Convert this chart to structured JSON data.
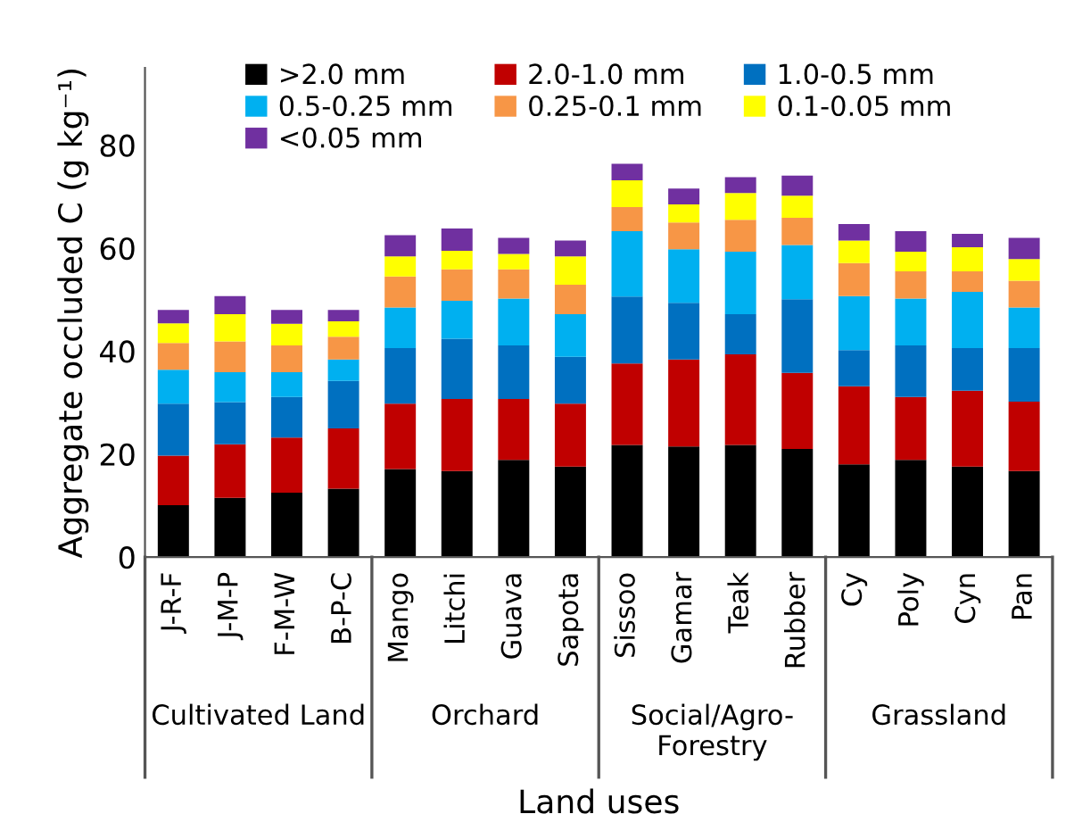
{
  "chart_data": {
    "type": "bar",
    "stacked": true,
    "ylabel": "Aggregate occluded C (g kg⁻¹)",
    "xlabel": "Land uses",
    "categories": [
      "J-R-F",
      "J-M-P",
      "F-M-W",
      "B-P-C",
      "Mango",
      "Litchi",
      "Guava",
      "Sapota",
      "Sissoo",
      "Gamar",
      "Teak",
      "Rubber",
      "Cy",
      "Poly",
      "Cyn",
      "Pan"
    ],
    "annotations": [
      "Cultivated Land",
      "Orchard",
      "Social/Agro-\nForestry",
      "Grassland"
    ],
    "series": [
      {
        "name": ">2.0 mm",
        "color": "#000000",
        "values": [
          10.1,
          11.5,
          12.5,
          13.3,
          17.1,
          16.7,
          18.9,
          17.6,
          21.8,
          21.5,
          21.8,
          21.0,
          18.0,
          18.9,
          17.6,
          16.7
        ]
      },
      {
        "name": "2.0-1.0 mm",
        "color": "#c00000",
        "values": [
          9.6,
          10.4,
          10.7,
          11.7,
          12.7,
          14.0,
          11.8,
          12.2,
          15.8,
          16.9,
          17.6,
          14.8,
          15.2,
          12.2,
          14.7,
          13.5
        ]
      },
      {
        "name": "1.0-0.5 mm",
        "color": "#0070c0",
        "values": [
          10.1,
          8.2,
          7.9,
          9.2,
          10.8,
          11.7,
          10.4,
          9.1,
          13.0,
          11.0,
          7.8,
          14.3,
          7.0,
          10.0,
          8.3,
          10.4
        ]
      },
      {
        "name": "0.5-0.25 mm",
        "color": "#00b0f0",
        "values": [
          6.6,
          5.8,
          4.8,
          4.2,
          7.9,
          7.4,
          9.1,
          8.3,
          12.7,
          10.4,
          12.1,
          10.5,
          10.5,
          9.1,
          10.9,
          7.9
        ]
      },
      {
        "name": "0.25-0.1 mm",
        "color": "#f79646",
        "values": [
          5.2,
          6.0,
          5.2,
          4.4,
          6.0,
          6.1,
          5.7,
          5.7,
          4.7,
          5.2,
          6.2,
          5.3,
          6.4,
          5.3,
          4.0,
          5.2
        ]
      },
      {
        "name": "0.1-0.05 mm",
        "color": "#ffff00",
        "values": [
          3.8,
          5.3,
          4.2,
          3.0,
          3.9,
          3.6,
          3.0,
          5.5,
          5.2,
          3.5,
          5.2,
          4.3,
          4.4,
          3.8,
          4.7,
          4.2
        ]
      },
      {
        "name": "<0.05 mm",
        "color": "#7030a0",
        "values": [
          2.6,
          3.5,
          2.7,
          2.2,
          4.1,
          4.3,
          3.1,
          3.1,
          3.2,
          3.1,
          3.1,
          3.9,
          3.2,
          4.0,
          2.6,
          4.1
        ]
      }
    ],
    "ylim": [
      0,
      95
    ],
    "yticks": [
      0,
      20,
      40,
      60,
      80
    ],
    "grid": false,
    "legend": "top"
  }
}
